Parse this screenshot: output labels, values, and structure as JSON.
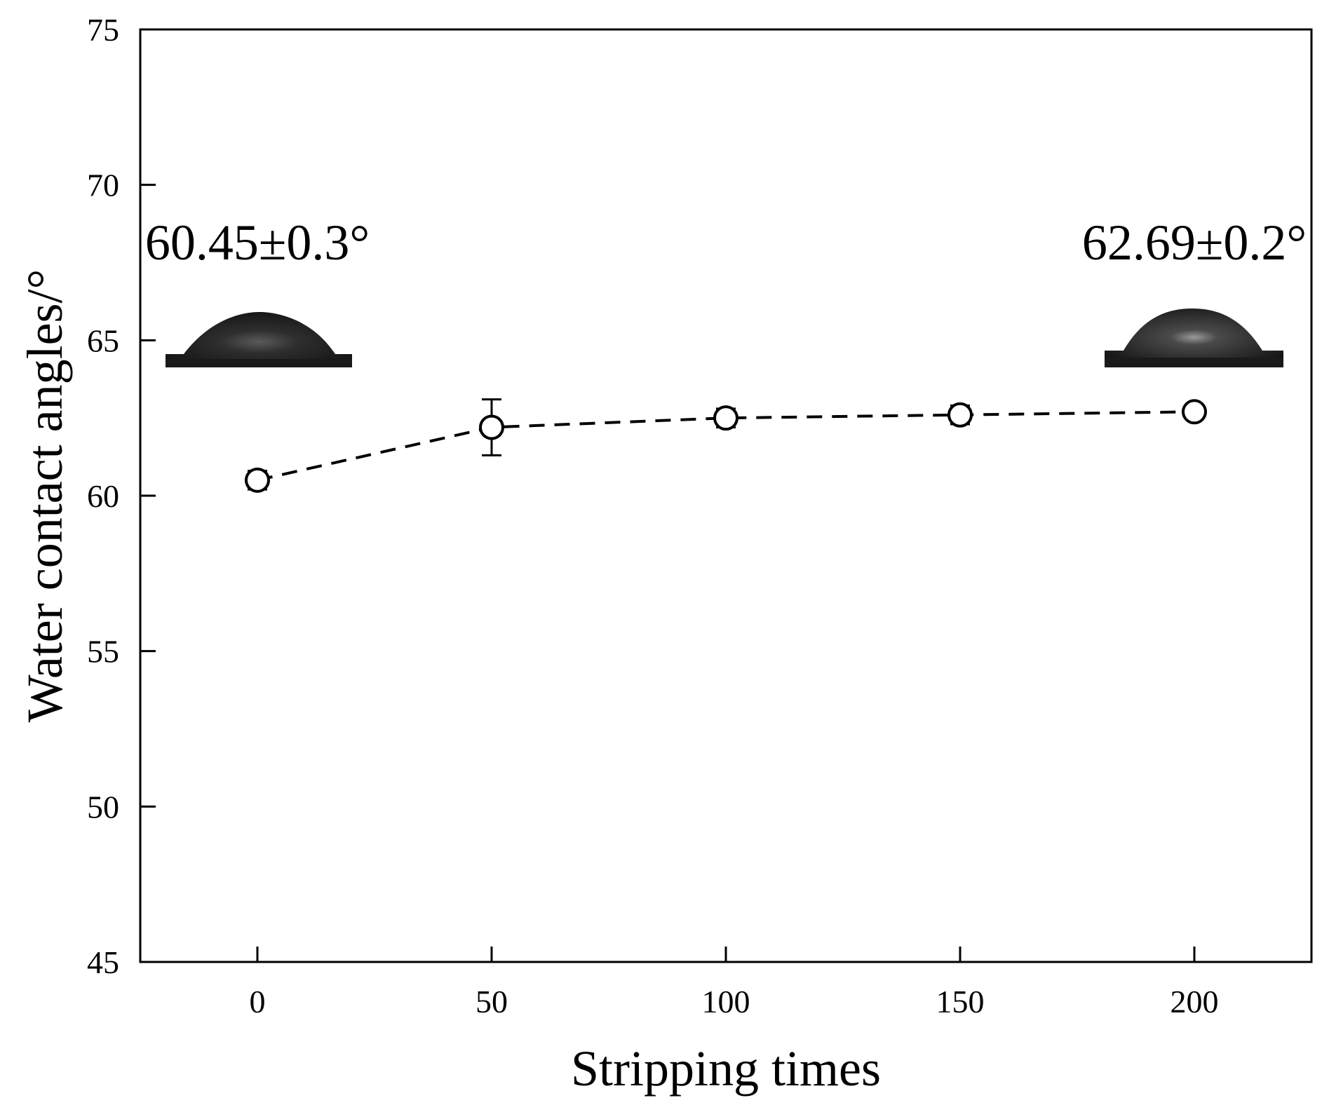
{
  "chart_data": {
    "type": "line",
    "title": "",
    "xlabel": "Stripping times",
    "ylabel": "Water contact angles/°",
    "xlim": [
      -25,
      225
    ],
    "ylim": [
      45,
      75
    ],
    "x_ticks": [
      0,
      50,
      100,
      150,
      200
    ],
    "y_ticks": [
      45,
      50,
      55,
      60,
      65,
      70,
      75
    ],
    "grid": false,
    "legend": "none",
    "line_style": "dashed",
    "marker": "open-circle",
    "color": "#000000",
    "series": [
      {
        "x": [
          0,
          50,
          100,
          150,
          200
        ],
        "y": [
          60.5,
          62.2,
          62.5,
          62.6,
          62.7
        ],
        "error": [
          0.3,
          0.9,
          0.3,
          0.3,
          0.2
        ]
      }
    ],
    "annotations": [
      {
        "text": "60.45±0.3°",
        "x": 0,
        "y": 67.6,
        "align": "center"
      },
      {
        "text": "62.69±0.2°",
        "x": 200,
        "y": 67.6,
        "align": "center"
      }
    ],
    "inset_images": [
      {
        "name": "droplet-image-left",
        "description": "water droplet on substrate",
        "near_x": 0
      },
      {
        "name": "droplet-image-right",
        "description": "water droplet on substrate",
        "near_x": 200
      }
    ]
  }
}
